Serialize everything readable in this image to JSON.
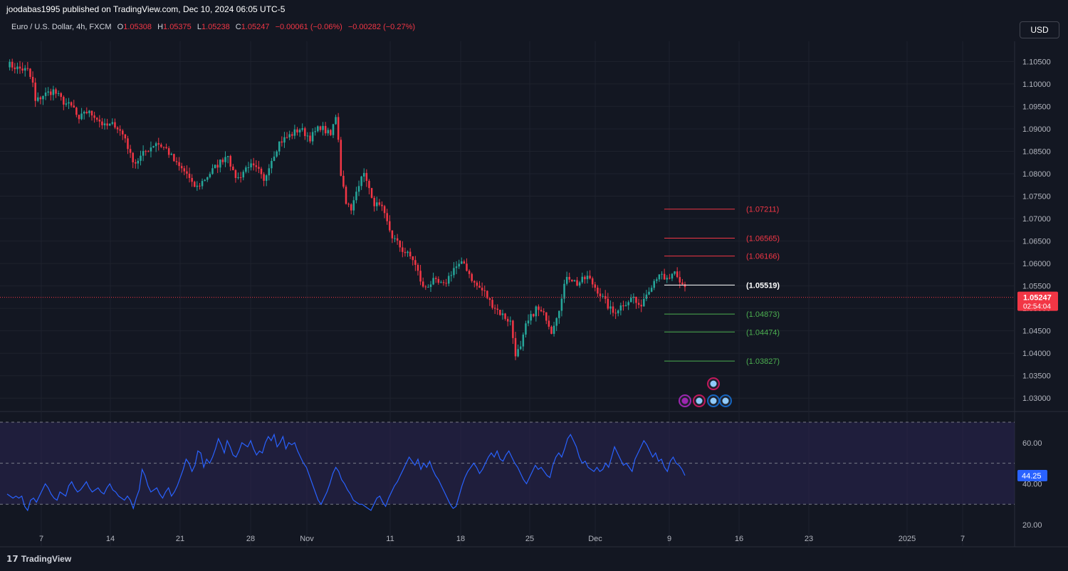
{
  "header": {
    "published": "joodabas1995 published on TradingView.com, Dec 10, 2024 06:05 UTC-5"
  },
  "legend": {
    "symbol": "Euro / U.S. Dollar, 4h, FXCM",
    "o_label": "O",
    "o": "1.05308",
    "h_label": "H",
    "h": "1.05375",
    "l_label": "L",
    "l": "1.05238",
    "c_label": "C",
    "c": "1.05247",
    "change": "−0.00061 (−0.06%)",
    "change2": "−0.00282 (−0.27%)"
  },
  "currency_button": "USD",
  "footer": {
    "brand": "TradingView"
  },
  "colors": {
    "up": "#26a69a",
    "down": "#f23645",
    "rsi": "#2962ff",
    "bg": "#131722"
  },
  "chart_data": [
    {
      "type": "candlestick",
      "title": "Euro / U.S. Dollar, 4h, FXCM",
      "y_ticks": [
        "1.10500",
        "1.10000",
        "1.09500",
        "1.09000",
        "1.08500",
        "1.08000",
        "1.07500",
        "1.07000",
        "1.06500",
        "1.06000",
        "1.05500",
        "1.05000",
        "1.04500",
        "1.04000",
        "1.03500",
        "1.03000"
      ],
      "ylim": [
        1.0275,
        1.1095
      ],
      "x_ticks": [
        "7",
        "14",
        "21",
        "28",
        "Nov",
        "11",
        "18",
        "25",
        "Dec",
        "9",
        "16",
        "23",
        "2025",
        "7"
      ],
      "close_path": [
        [
          0,
          1.1045
        ],
        [
          4,
          1.1035
        ],
        [
          8,
          1.103
        ],
        [
          10,
          1.1
        ],
        [
          11,
          1.096
        ],
        [
          14,
          1.0975
        ],
        [
          18,
          1.0985
        ],
        [
          22,
          1.096
        ],
        [
          26,
          1.0945
        ],
        [
          28,
          1.0915
        ],
        [
          30,
          1.094
        ],
        [
          34,
          1.093
        ],
        [
          38,
          1.0905
        ],
        [
          42,
          1.091
        ],
        [
          46,
          1.088
        ],
        [
          48,
          1.084
        ],
        [
          50,
          1.0825
        ],
        [
          54,
          1.085
        ],
        [
          58,
          1.087
        ],
        [
          62,
          1.0855
        ],
        [
          66,
          1.082
        ],
        [
          70,
          1.08
        ],
        [
          72,
          1.0775
        ],
        [
          74,
          1.077
        ],
        [
          78,
          1.0795
        ],
        [
          82,
          1.082
        ],
        [
          86,
          1.0845
        ],
        [
          88,
          1.08
        ],
        [
          90,
          1.079
        ],
        [
          94,
          1.082
        ],
        [
          98,
          1.0805
        ],
        [
          100,
          1.078
        ],
        [
          102,
          1.082
        ],
        [
          106,
          1.087
        ],
        [
          110,
          1.0885
        ],
        [
          114,
          1.09
        ],
        [
          118,
          1.088
        ],
        [
          122,
          1.0905
        ],
        [
          126,
          1.0885
        ],
        [
          128,
          1.093
        ],
        [
          129,
          1.088
        ],
        [
          130,
          1.08
        ],
        [
          132,
          1.074
        ],
        [
          134,
          1.0715
        ],
        [
          136,
          1.076
        ],
        [
          138,
          1.08
        ],
        [
          140,
          1.079
        ],
        [
          142,
          1.074
        ],
        [
          146,
          1.072
        ],
        [
          150,
          1.066
        ],
        [
          154,
          1.063
        ],
        [
          158,
          1.061
        ],
        [
          160,
          1.058
        ],
        [
          162,
          1.0545
        ],
        [
          166,
          1.056
        ],
        [
          170,
          1.055
        ],
        [
          174,
          1.059
        ],
        [
          178,
          1.06
        ],
        [
          182,
          1.0555
        ],
        [
          186,
          1.0535
        ],
        [
          188,
          1.0515
        ],
        [
          192,
          1.049
        ],
        [
          196,
          1.047
        ],
        [
          198,
          1.04
        ],
        [
          200,
          1.041
        ],
        [
          202,
          1.046
        ],
        [
          206,
          1.05
        ],
        [
          210,
          1.048
        ],
        [
          212,
          1.045
        ],
        [
          216,
          1.052
        ],
        [
          218,
          1.0575
        ],
        [
          222,
          1.0555
        ],
        [
          226,
          1.057
        ],
        [
          230,
          1.054
        ],
        [
          234,
          1.0505
        ],
        [
          236,
          1.049
        ],
        [
          240,
          1.051
        ],
        [
          244,
          1.0525
        ],
        [
          246,
          1.05
        ],
        [
          250,
          1.0545
        ],
        [
          254,
          1.058
        ],
        [
          256,
          1.056
        ],
        [
          260,
          1.0575
        ],
        [
          262,
          1.0555
        ],
        [
          264,
          1.055
        ]
      ]
    },
    {
      "type": "horizontal_levels",
      "levels": [
        {
          "value": 1.07211,
          "label": "(1.07211)",
          "color": "#f23645"
        },
        {
          "value": 1.06565,
          "label": "(1.06565)",
          "color": "#f23645"
        },
        {
          "value": 1.06166,
          "label": "(1.06166)",
          "color": "#f23645"
        },
        {
          "value": 1.05519,
          "label": "(1.05519)",
          "color": "#ffffff"
        },
        {
          "value": 1.04873,
          "label": "(1.04873)",
          "color": "#4caf50"
        },
        {
          "value": 1.04474,
          "label": "(1.04474)",
          "color": "#4caf50"
        },
        {
          "value": 1.03827,
          "label": "(1.03827)",
          "color": "#4caf50"
        }
      ],
      "current_price": {
        "value": 1.05247,
        "label": "1.05247",
        "countdown": "02:54:04"
      }
    },
    {
      "type": "line",
      "name": "RSI",
      "y_ticks": [
        "60.00",
        "40.00",
        "20.00"
      ],
      "ylim": [
        19,
        70
      ],
      "bands": [
        30,
        50,
        70
      ],
      "last_value": "44.25",
      "values": [
        35,
        34,
        33,
        34,
        33,
        34,
        29,
        27,
        32,
        33,
        31,
        34,
        37,
        40,
        38,
        35,
        33,
        32,
        36,
        35,
        34,
        39,
        41,
        38,
        36,
        37,
        39,
        41,
        38,
        36,
        37,
        38,
        36,
        35,
        38,
        40,
        37,
        36,
        34,
        33,
        32,
        34,
        32,
        28,
        33,
        37,
        47,
        44,
        39,
        36,
        37,
        38,
        35,
        33,
        36,
        38,
        34,
        36,
        39,
        43,
        47,
        52,
        50,
        46,
        49,
        56,
        55,
        48,
        52,
        50,
        53,
        57,
        62,
        59,
        55,
        61,
        58,
        54,
        53,
        56,
        60,
        59,
        58,
        61,
        57,
        54,
        56,
        55,
        60,
        63,
        61,
        64,
        58,
        60,
        63,
        57,
        60,
        59,
        60,
        56,
        53,
        50,
        48,
        44,
        40,
        36,
        32,
        30,
        33,
        36,
        40,
        45,
        48,
        46,
        42,
        40,
        37,
        35,
        32,
        31,
        30,
        30,
        29,
        28,
        27,
        30,
        33,
        34,
        31,
        29,
        33,
        36,
        39,
        41,
        44,
        47,
        50,
        53,
        51,
        49,
        52,
        47,
        50,
        48,
        51,
        47,
        44,
        42,
        39,
        36,
        33,
        30,
        28,
        29,
        34,
        39,
        43,
        46,
        48,
        50,
        48,
        45,
        47,
        50,
        53,
        55,
        53,
        56,
        52,
        51,
        54,
        56,
        53,
        50,
        48,
        45,
        42,
        40,
        43,
        46,
        49,
        47,
        48,
        46,
        44,
        43,
        49,
        53,
        55,
        53,
        57,
        62,
        64,
        61,
        58,
        53,
        50,
        51,
        48,
        47,
        46,
        48,
        46,
        47,
        50,
        48,
        53,
        58,
        55,
        52,
        49,
        50,
        48,
        46,
        52,
        55,
        58,
        61,
        59,
        56,
        53,
        55,
        51,
        52,
        48,
        46,
        51,
        53,
        50,
        49,
        47,
        44
      ]
    }
  ]
}
